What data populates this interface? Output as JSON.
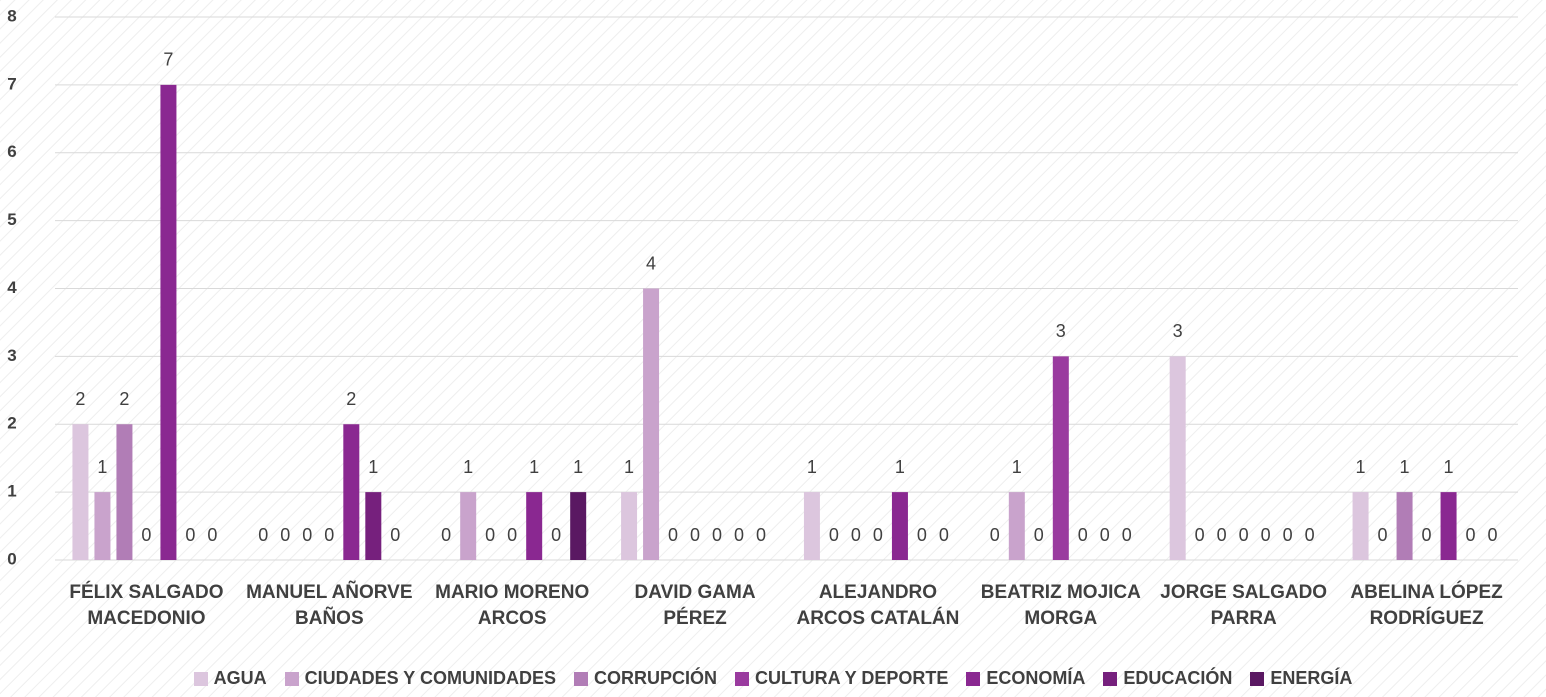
{
  "chart_data": {
    "type": "bar",
    "categories": [
      "FÉLIX SALGADO MACEDONIO",
      "MANUEL AÑORVE BAÑOS",
      "MARIO MORENO ARCOS",
      "DAVID GAMA PÉREZ",
      "ALEJANDRO ARCOS CATALÁN",
      "BEATRIZ MOJICA MORGA",
      "JORGE SALGADO PARRA",
      "ABELINA LÓPEZ RODRÍGUEZ"
    ],
    "series": [
      {
        "name": "AGUA",
        "color": "#dcc6de",
        "values": [
          2,
          0,
          0,
          1,
          1,
          0,
          3,
          1
        ]
      },
      {
        "name": "CIUDADES Y COMUNIDADES",
        "color": "#c9a3cc",
        "values": [
          1,
          0,
          1,
          4,
          0,
          1,
          0,
          0
        ]
      },
      {
        "name": "CORRUPCIÓN",
        "color": "#b17db6",
        "values": [
          2,
          0,
          0,
          0,
          0,
          0,
          0,
          1
        ]
      },
      {
        "name": "CULTURA Y DEPORTE",
        "color": "#9a3b9f",
        "values": [
          0,
          0,
          0,
          0,
          0,
          3,
          0,
          0
        ]
      },
      {
        "name": "ECONOMÍA",
        "color": "#8a2891",
        "values": [
          7,
          2,
          1,
          0,
          1,
          0,
          0,
          1
        ]
      },
      {
        "name": "EDUCACIÓN",
        "color": "#76207d",
        "values": [
          0,
          1,
          0,
          0,
          0,
          0,
          0,
          0
        ]
      },
      {
        "name": "ENERGÍA",
        "color": "#5a1862",
        "values": [
          0,
          0,
          1,
          0,
          0,
          0,
          0,
          0
        ]
      }
    ],
    "ylim": [
      0,
      8
    ],
    "yticks": [
      0,
      1,
      2,
      3,
      4,
      5,
      6,
      7,
      8
    ],
    "grid": true,
    "legend": "bottom"
  }
}
